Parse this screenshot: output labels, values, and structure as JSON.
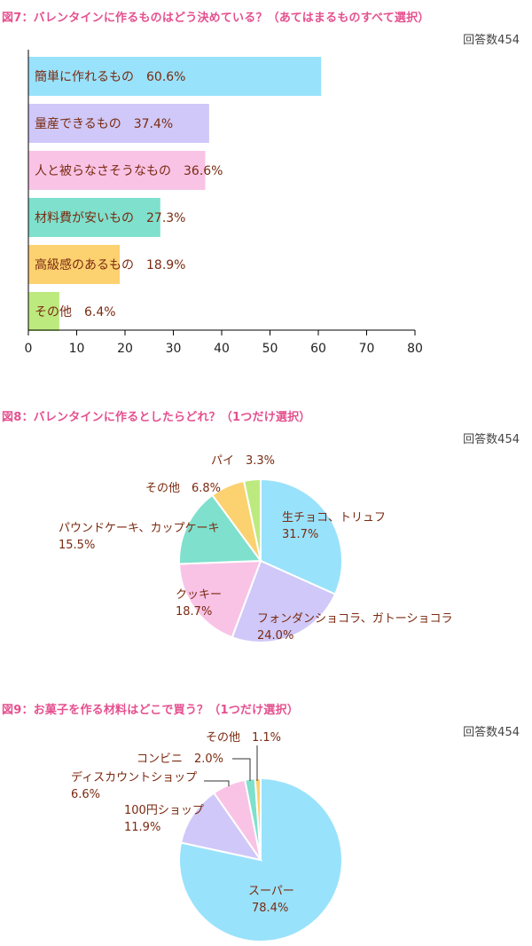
{
  "figures": [
    {
      "title": "図7：バレンタインに作るものはどう決めている？（あてはまるものすべて選択）",
      "respondents": "回答数454"
    },
    {
      "title": "図8：バレンタインに作るとしたらどれ？（1つだけ選択）",
      "respondents": "回答数454"
    },
    {
      "title": "図9：お菓子を作る材料はどこで買う？（1つだけ選択）",
      "respondents": "回答数454"
    }
  ],
  "chart_data": [
    {
      "type": "bar",
      "orientation": "horizontal",
      "title": "図7：バレンタインに作るものはどう決めている？（あてはまるものすべて選択）",
      "categories": [
        "簡単に作れるもの",
        "量産できるもの",
        "人と被らなさそうなもの",
        "材料費が安いもの",
        "高級感のあるもの",
        "その他"
      ],
      "values": [
        60.6,
        37.4,
        36.6,
        27.3,
        18.9,
        6.4
      ],
      "value_labels": [
        "60.6%",
        "37.4%",
        "36.6%",
        "27.3%",
        "18.9%",
        "6.4%"
      ],
      "colors": [
        "#99e2fb",
        "#cfc8f8",
        "#f9c3e6",
        "#7ee0cd",
        "#fcd16f",
        "#bdea7f"
      ],
      "xlim": [
        0,
        80
      ],
      "xticks": [
        0,
        10,
        20,
        30,
        40,
        50,
        60,
        70,
        80
      ],
      "grid": false,
      "respondents": "回答数454"
    },
    {
      "type": "pie",
      "title": "図8：バレンタインに作るとしたらどれ？（1つだけ選択）",
      "labels": [
        "生チョコ、トリュフ",
        "フォンダンショコラ、ガトーショコラ",
        "クッキー",
        "パウンドケーキ、カップケーキ",
        "その他",
        "パイ"
      ],
      "values": [
        31.7,
        24.0,
        18.7,
        15.5,
        6.8,
        3.3
      ],
      "value_labels": [
        "31.7%",
        "24.0%",
        "18.7%",
        "15.5%",
        "6.8%",
        "3.3%"
      ],
      "colors": [
        "#99e2fb",
        "#cfc8f8",
        "#f9c3e6",
        "#7ee0cd",
        "#fcd16f",
        "#bdea7f"
      ],
      "respondents": "回答数454"
    },
    {
      "type": "pie",
      "title": "図9：お菓子を作る材料はどこで買う？（1つだけ選択）",
      "labels": [
        "スーパー",
        "100円ショップ",
        "ディスカウントショップ",
        "コンビニ",
        "その他"
      ],
      "values": [
        78.4,
        11.9,
        6.6,
        2.0,
        1.1
      ],
      "value_labels": [
        "78.4%",
        "11.9%",
        "6.6%",
        "2.0%",
        "1.1%"
      ],
      "colors": [
        "#99e2fb",
        "#cfc8f8",
        "#f9c3e6",
        "#7ee0cd",
        "#fcd16f"
      ],
      "respondents": "回答数454"
    }
  ]
}
